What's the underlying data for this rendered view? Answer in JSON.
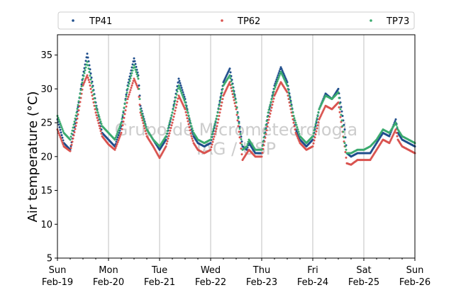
{
  "chart_data": {
    "type": "scatter",
    "title": "",
    "xlabel": "",
    "ylabel": "Air temperature (°C)",
    "ylim": [
      5,
      38
    ],
    "yticks": [
      5,
      10,
      15,
      20,
      25,
      30,
      35
    ],
    "xlim": [
      "2023-02-19 00:00",
      "2023-02-26 00:00"
    ],
    "xticks": [
      {
        "day": "Sun",
        "date": "Feb-19"
      },
      {
        "day": "Mon",
        "date": "Feb-20"
      },
      {
        "day": "Tue",
        "date": "Feb-21"
      },
      {
        "day": "Wed",
        "date": "Feb-22"
      },
      {
        "day": "Thu",
        "date": "Feb-23"
      },
      {
        "day": "Fri",
        "date": "Feb-24"
      },
      {
        "day": "Sat",
        "date": "Feb-25"
      },
      {
        "day": "Sun",
        "date": "Feb-26"
      }
    ],
    "grid": "x-major",
    "legend": "top",
    "watermark": [
      "Grupo de Micrometeorologia",
      "IAG / USP"
    ],
    "x_units": "hours since 2023-02-19 00:00",
    "series": [
      {
        "name": "TP41",
        "color": "#1f4e8c",
        "x": [
          0,
          3,
          6,
          9,
          12,
          14,
          15,
          18,
          21,
          24,
          27,
          30,
          33,
          36,
          38,
          39,
          42,
          45,
          48,
          51,
          54,
          57,
          60,
          63,
          64,
          66,
          69,
          72,
          75,
          78,
          81,
          84,
          87,
          89,
          90,
          93,
          96,
          99,
          102,
          105,
          108,
          111,
          112,
          114,
          117,
          120,
          123,
          126,
          129,
          132,
          135,
          136,
          138,
          141,
          144,
          147,
          150,
          153,
          156,
          159,
          160,
          162,
          165,
          168
        ],
        "y": [
          25.5,
          22.0,
          21.0,
          26.0,
          32.0,
          35.2,
          33.5,
          28.0,
          23.5,
          22.5,
          21.5,
          24.5,
          30.5,
          34.5,
          32.0,
          27.5,
          24.0,
          22.5,
          21.0,
          22.5,
          26.5,
          31.5,
          28.5,
          24.0,
          23.0,
          22.0,
          21.5,
          22.0,
          26.0,
          31.0,
          33.0,
          28.0,
          21.5,
          21.0,
          22.0,
          20.5,
          20.5,
          26.0,
          30.5,
          33.2,
          31.0,
          26.0,
          24.0,
          22.5,
          21.5,
          22.5,
          27.0,
          29.3,
          28.5,
          30.0,
          24.0,
          20.5,
          20.0,
          20.5,
          20.5,
          20.5,
          22.0,
          23.5,
          23.0,
          25.5,
          23.5,
          22.5,
          22.0,
          21.5
        ]
      },
      {
        "name": "TP62",
        "color": "#d9534f",
        "x": [
          0,
          3,
          6,
          9,
          12,
          14,
          15,
          18,
          21,
          24,
          27,
          30,
          33,
          36,
          38,
          39,
          42,
          45,
          48,
          51,
          54,
          57,
          60,
          63,
          64,
          66,
          69,
          72,
          75,
          78,
          81,
          84,
          87,
          89,
          90,
          93,
          96,
          99,
          102,
          105,
          108,
          111,
          112,
          114,
          117,
          120,
          123,
          126,
          129,
          132,
          135,
          136,
          138,
          141,
          144,
          147,
          150,
          153,
          156,
          159,
          160,
          162,
          165,
          168
        ],
        "y": [
          24.0,
          21.5,
          20.8,
          25.0,
          30.5,
          32.0,
          31.0,
          26.5,
          23.0,
          21.8,
          21.0,
          23.5,
          28.5,
          31.5,
          30.0,
          26.5,
          23.0,
          21.5,
          19.8,
          21.5,
          25.0,
          29.0,
          27.0,
          23.0,
          22.0,
          21.0,
          20.5,
          21.0,
          24.5,
          29.0,
          31.0,
          27.0,
          19.5,
          20.5,
          21.0,
          20.0,
          20.0,
          25.0,
          29.0,
          31.0,
          29.5,
          25.0,
          23.5,
          22.0,
          21.0,
          21.5,
          25.5,
          27.5,
          27.0,
          28.0,
          21.5,
          19.0,
          18.8,
          19.5,
          19.5,
          19.5,
          21.0,
          22.5,
          22.0,
          24.0,
          22.5,
          21.5,
          21.0,
          20.5
        ]
      },
      {
        "name": "TP73",
        "color": "#3aaa6e",
        "x": [
          0,
          3,
          6,
          9,
          12,
          14,
          15,
          18,
          21,
          24,
          27,
          30,
          33,
          36,
          38,
          39,
          42,
          45,
          48,
          51,
          54,
          57,
          60,
          63,
          64,
          66,
          69,
          72,
          75,
          78,
          81,
          84,
          87,
          89,
          90,
          93,
          96,
          99,
          102,
          105,
          108,
          111,
          112,
          114,
          117,
          120,
          123,
          126,
          129,
          132,
          135,
          136,
          138,
          141,
          144,
          147,
          150,
          153,
          156,
          159,
          160,
          162,
          165,
          168
        ],
        "y": [
          26.0,
          23.5,
          22.5,
          26.5,
          31.5,
          34.0,
          32.5,
          27.5,
          24.5,
          23.5,
          22.5,
          25.0,
          30.0,
          33.5,
          31.5,
          27.0,
          24.0,
          22.5,
          21.5,
          23.0,
          26.5,
          30.5,
          28.0,
          24.5,
          23.5,
          22.5,
          22.0,
          22.5,
          26.0,
          30.5,
          32.0,
          28.0,
          21.0,
          21.5,
          22.5,
          21.0,
          21.0,
          26.5,
          30.0,
          32.5,
          30.5,
          26.0,
          25.0,
          23.0,
          22.0,
          23.0,
          27.0,
          29.0,
          28.5,
          29.5,
          22.0,
          20.5,
          20.5,
          21.0,
          21.0,
          21.5,
          22.5,
          24.0,
          23.5,
          25.0,
          24.0,
          23.0,
          22.5,
          22.0
        ]
      }
    ]
  }
}
